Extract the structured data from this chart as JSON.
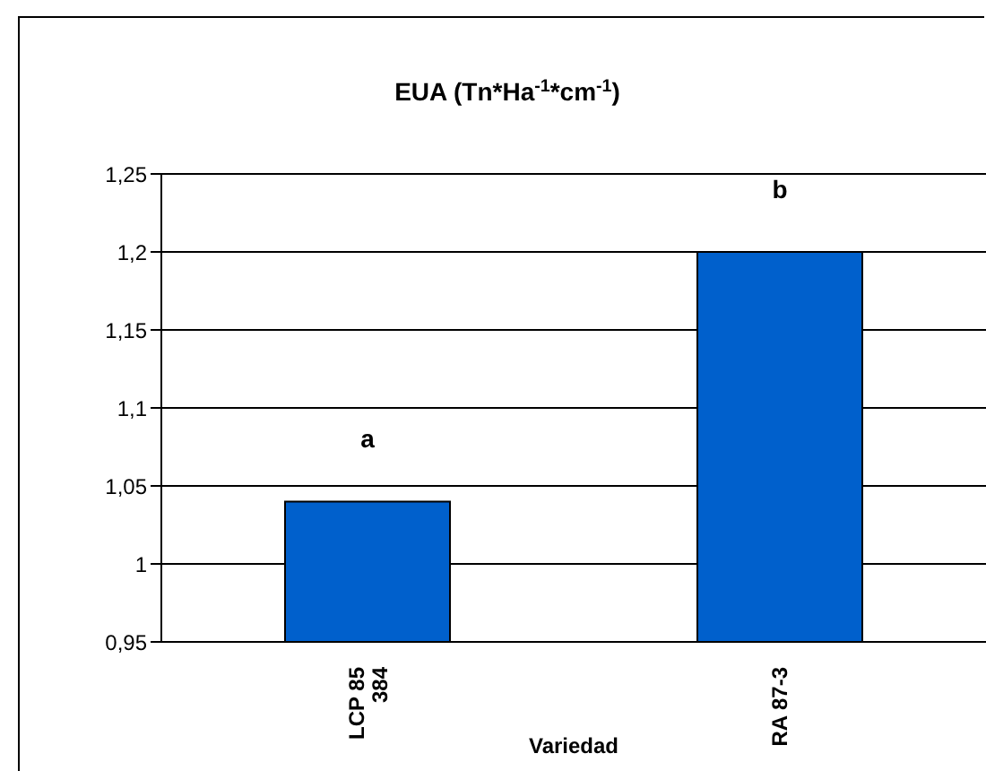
{
  "chart_data": {
    "type": "bar",
    "title": "EUA (Tn*Ha$^{-1}$*cm$^{-1}$)",
    "xlabel": "Variedad",
    "categories": [
      "LCP 85 384",
      "RA 87-3"
    ],
    "values": [
      1.04,
      1.2
    ],
    "color": "#0060cc",
    "ylim": [
      0.95,
      1.25
    ],
    "yticks": [
      {
        "value": 0.95,
        "label": "0,95"
      },
      {
        "value": 1,
        "label": "1"
      },
      {
        "value": 1.05,
        "label": "1,05"
      },
      {
        "value": 1.1,
        "label": "1,1"
      },
      {
        "value": 1.15,
        "label": "1,15"
      },
      {
        "value": 1.2,
        "label": "1,2"
      },
      {
        "value": 1.25,
        "label": "1,25"
      }
    ],
    "grid": "y",
    "legend": false,
    "annotations": [
      "a",
      "b"
    ]
  }
}
